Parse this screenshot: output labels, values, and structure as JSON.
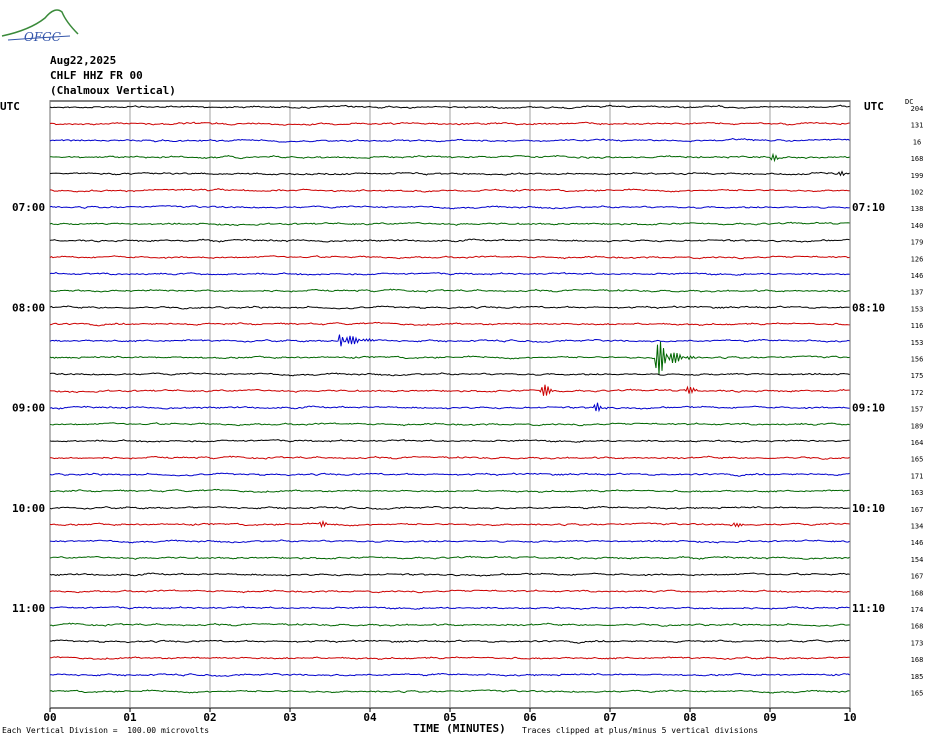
{
  "header": {
    "logo_text": "OFGC",
    "date": "Aug22,2025",
    "station": "CHLF HHZ FR 00",
    "component": "(Chalmoux Vertical)"
  },
  "footer": {
    "scale_note": "Each Vertical Division =  100.00 microvolts",
    "clip_note": "Traces clipped at plus/minus 5 vertical divisions"
  },
  "colors": {
    "trace_cycle": [
      "#000000",
      "#cc0000",
      "#0000cc",
      "#006600"
    ],
    "grid": "#000000"
  },
  "chart_data": {
    "type": "line",
    "title": "",
    "xlabel": "TIME (MINUTES)",
    "x_ticks": [
      "00",
      "01",
      "02",
      "03",
      "04",
      "05",
      "06",
      "07",
      "08",
      "09",
      "10"
    ],
    "xlim": [
      0,
      10
    ],
    "left_axis_title": "UTC",
    "right_axis_title": "UTC",
    "dc_title": "DC",
    "left_time_labels": [
      {
        "row": 6,
        "label": "07:00"
      },
      {
        "row": 12,
        "label": "08:00"
      },
      {
        "row": 18,
        "label": "09:00"
      },
      {
        "row": 24,
        "label": "10:00"
      },
      {
        "row": 30,
        "label": "11:00"
      }
    ],
    "right_time_labels": [
      {
        "row": 6,
        "label": "07:10"
      },
      {
        "row": 12,
        "label": "08:10"
      },
      {
        "row": 18,
        "label": "09:10"
      },
      {
        "row": 24,
        "label": "10:10"
      },
      {
        "row": 30,
        "label": "11:10"
      }
    ],
    "dc_offsets": [
      "204",
      "131",
      "16",
      "168",
      "199",
      "102",
      "138",
      "140",
      "179",
      "126",
      "146",
      "137",
      "153",
      "116",
      "153",
      "156",
      "175",
      "172",
      "157",
      "189",
      "164",
      "165",
      "171",
      "163",
      "167",
      "134",
      "146",
      "154",
      "167",
      "168",
      "174",
      "168",
      "173",
      "168",
      "185",
      "165"
    ],
    "events": [
      {
        "row": 3,
        "minute": 9.05,
        "amplitude": 0.5,
        "width": 0.15
      },
      {
        "row": 4,
        "minute": 9.9,
        "amplitude": 0.4,
        "width": 0.15
      },
      {
        "row": 14,
        "minute": 3.65,
        "amplitude": 1.1,
        "width": 0.45
      },
      {
        "row": 15,
        "minute": 7.62,
        "amplitude": 2.2,
        "width": 0.45
      },
      {
        "row": 17,
        "minute": 6.18,
        "amplitude": 0.9,
        "width": 0.2
      },
      {
        "row": 17,
        "minute": 7.98,
        "amplitude": 0.6,
        "width": 0.2
      },
      {
        "row": 18,
        "minute": 6.85,
        "amplitude": 0.7,
        "width": 0.15
      },
      {
        "row": 25,
        "minute": 3.42,
        "amplitude": 0.5,
        "width": 0.15
      },
      {
        "row": 25,
        "minute": 8.55,
        "amplitude": 0.5,
        "width": 0.15
      }
    ]
  }
}
